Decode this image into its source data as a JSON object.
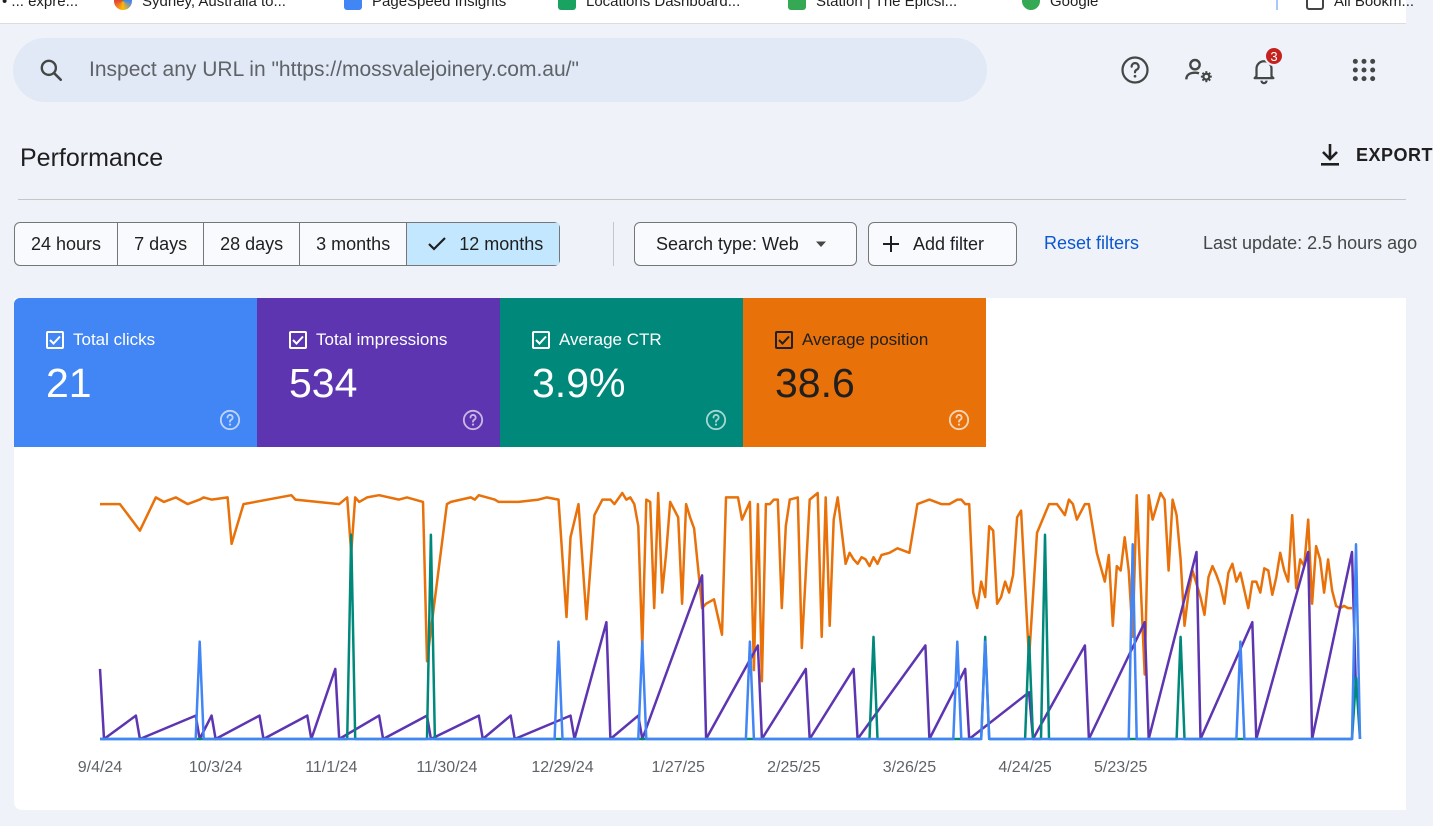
{
  "bookmarks": [
    {
      "label": "• ... expre..."
    },
    {
      "label": "Sydney, Australia to..."
    },
    {
      "label": "PageSpeed Insights"
    },
    {
      "label": "Locations Dashboard..."
    },
    {
      "label": "Station | The Epicsi..."
    },
    {
      "label": "Google"
    },
    {
      "label": "All Bookm..."
    }
  ],
  "search": {
    "placeholder": "Inspect any URL in \"https://mossvalejoinery.com.au/\""
  },
  "header": {
    "notifications_count": "3"
  },
  "page": {
    "title": "Performance",
    "export_label": "EXPORT"
  },
  "date_ranges": [
    "24 hours",
    "7 days",
    "28 days",
    "3 months",
    "12 months"
  ],
  "selected_range": "12 months",
  "filters": {
    "search_type": "Search type: Web",
    "add_filter": "Add filter",
    "reset": "Reset filters",
    "last_update": "Last update: 2.5 hours ago"
  },
  "metrics": [
    {
      "label": "Total clicks",
      "value": "21",
      "color": "#4285f4"
    },
    {
      "label": "Total impressions",
      "value": "534",
      "color": "#5e35b1"
    },
    {
      "label": "Average CTR",
      "value": "3.9%",
      "color": "#00897b"
    },
    {
      "label": "Average position",
      "value": "38.6",
      "color": "#e8710a"
    }
  ],
  "chart_data": {
    "type": "line",
    "title": "",
    "xlabel": "",
    "ylabel": "",
    "x_ticks": [
      "9/4/24",
      "10/3/24",
      "11/1/24",
      "11/30/24",
      "12/29/24",
      "1/27/25",
      "2/25/25",
      "3/26/25",
      "4/24/25",
      "5/23/25"
    ],
    "x_range": [
      "9/4/24",
      "5/26/25"
    ],
    "axes_visible": false,
    "series": [
      {
        "name": "Average position",
        "color": "#e8710a",
        "note": "daily average position, inverted scale (top = better rank); many days with no data",
        "approx_points": [
          [
            0,
            5
          ],
          [
            5,
            5
          ],
          [
            10,
            17
          ],
          [
            14,
            2
          ],
          [
            16,
            4
          ],
          [
            19,
            2
          ],
          [
            20,
            3
          ],
          [
            22,
            5
          ],
          [
            25,
            3
          ],
          [
            26,
            2
          ],
          [
            28,
            3
          ],
          [
            32,
            2
          ],
          [
            33,
            23
          ],
          [
            36,
            5
          ],
          [
            48,
            1
          ],
          [
            49,
            3
          ],
          [
            60,
            5
          ],
          [
            62,
            2
          ],
          [
            63,
            27
          ],
          [
            64,
            2
          ],
          [
            65,
            4
          ],
          [
            67,
            2
          ],
          [
            70,
            1
          ],
          [
            75,
            3
          ],
          [
            77,
            2
          ],
          [
            81,
            4
          ],
          [
            82,
            76
          ],
          [
            87,
            5
          ],
          [
            88,
            4
          ],
          [
            93,
            2
          ],
          [
            94,
            3
          ],
          [
            95,
            1
          ],
          [
            99,
            3
          ],
          [
            100,
            4
          ],
          [
            105,
            4
          ],
          [
            110,
            3
          ],
          [
            112,
            2
          ],
          [
            115,
            3
          ],
          [
            117,
            56
          ],
          [
            118,
            20
          ],
          [
            120,
            5
          ],
          [
            122,
            57
          ],
          [
            124,
            10
          ],
          [
            126,
            3
          ],
          [
            128,
            3
          ],
          [
            129,
            5
          ],
          [
            131,
            0
          ],
          [
            132,
            3
          ],
          [
            133,
            2
          ],
          [
            134,
            5
          ],
          [
            135,
            15
          ],
          [
            136,
            70
          ],
          [
            137,
            3
          ],
          [
            138,
            4
          ],
          [
            139,
            52
          ],
          [
            140,
            0
          ],
          [
            141,
            45
          ],
          [
            142,
            27
          ],
          [
            143,
            4
          ],
          [
            145,
            11
          ],
          [
            146,
            50
          ],
          [
            147,
            5
          ],
          [
            148,
            11
          ],
          [
            149,
            16
          ],
          [
            151,
            52
          ],
          [
            152,
            50
          ],
          [
            154,
            48
          ],
          [
            156,
            64
          ],
          [
            157,
            2
          ],
          [
            158,
            2
          ],
          [
            159,
            2
          ],
          [
            160,
            2
          ],
          [
            161,
            12
          ],
          [
            163,
            4
          ],
          [
            164,
            80
          ],
          [
            165,
            5
          ],
          [
            166,
            85
          ],
          [
            167,
            5
          ],
          [
            168,
            5
          ],
          [
            169,
            3
          ],
          [
            170,
            3
          ],
          [
            171,
            52
          ],
          [
            172,
            15
          ],
          [
            173,
            3
          ],
          [
            175,
            2
          ],
          [
            176,
            70
          ],
          [
            178,
            3
          ],
          [
            180,
            0
          ],
          [
            181,
            65
          ],
          [
            182,
            2
          ],
          [
            183,
            60
          ],
          [
            184,
            12
          ],
          [
            185,
            2
          ],
          [
            187,
            32
          ],
          [
            188,
            27
          ],
          [
            189,
            30
          ],
          [
            190,
            32
          ],
          [
            191,
            29
          ],
          [
            192,
            30
          ],
          [
            193,
            33
          ],
          [
            194,
            29
          ],
          [
            195,
            32
          ],
          [
            196,
            28
          ],
          [
            198,
            27
          ],
          [
            200,
            25
          ],
          [
            203,
            27
          ],
          [
            205,
            5
          ],
          [
            208,
            3
          ],
          [
            211,
            5
          ],
          [
            213,
            5
          ],
          [
            215,
            3
          ],
          [
            216,
            3
          ],
          [
            217,
            5
          ],
          [
            218,
            5
          ],
          [
            219,
            45
          ],
          [
            220,
            52
          ],
          [
            221,
            40
          ],
          [
            222,
            47
          ],
          [
            223,
            15
          ],
          [
            224,
            17
          ],
          [
            225,
            50
          ],
          [
            226,
            47
          ],
          [
            227,
            40
          ],
          [
            228,
            45
          ],
          [
            229,
            37
          ],
          [
            230,
            11
          ],
          [
            231,
            8
          ],
          [
            233,
            75
          ],
          [
            235,
            18
          ],
          [
            238,
            5
          ],
          [
            240,
            5
          ],
          [
            242,
            10
          ],
          [
            243,
            3
          ],
          [
            244,
            5
          ],
          [
            245,
            12
          ],
          [
            247,
            5
          ],
          [
            248,
            5
          ],
          [
            250,
            27
          ],
          [
            252,
            40
          ],
          [
            253,
            28
          ],
          [
            254,
            60
          ],
          [
            255,
            33
          ],
          [
            256,
            35
          ],
          [
            257,
            20
          ],
          [
            258,
            35
          ],
          [
            259,
            65
          ],
          [
            260,
            1
          ],
          [
            262,
            82
          ],
          [
            263,
            1
          ],
          [
            264,
            12
          ],
          [
            266,
            0
          ],
          [
            267,
            3
          ],
          [
            268,
            35
          ],
          [
            269,
            3
          ],
          [
            270,
            10
          ],
          [
            271,
            30
          ],
          [
            272,
            60
          ],
          [
            273,
            45
          ],
          [
            274,
            35
          ],
          [
            276,
            47
          ],
          [
            277,
            55
          ],
          [
            278,
            38
          ],
          [
            279,
            33
          ],
          [
            280,
            37
          ],
          [
            281,
            42
          ],
          [
            282,
            50
          ],
          [
            283,
            36
          ],
          [
            284,
            32
          ],
          [
            285,
            40
          ],
          [
            286,
            36
          ],
          [
            288,
            52
          ],
          [
            289,
            40
          ],
          [
            290,
            40
          ],
          [
            291,
            45
          ],
          [
            292,
            34
          ],
          [
            293,
            35
          ],
          [
            294,
            46
          ],
          [
            295,
            38
          ],
          [
            296,
            27
          ],
          [
            297,
            35
          ],
          [
            298,
            40
          ],
          [
            299,
            10
          ],
          [
            300,
            43
          ],
          [
            301,
            30
          ],
          [
            302,
            33
          ],
          [
            303,
            12
          ],
          [
            304,
            50
          ],
          [
            305,
            24
          ],
          [
            306,
            30
          ],
          [
            307,
            45
          ],
          [
            308,
            30
          ],
          [
            309,
            44
          ],
          [
            310,
            51
          ],
          [
            311,
            52
          ],
          [
            312,
            51
          ],
          [
            313,
            52
          ],
          [
            314,
            52
          ]
        ]
      },
      {
        "name": "Total impressions",
        "color": "#5e35b1",
        "note": "daily impressions",
        "approx_points": [
          [
            0,
            3
          ],
          [
            1,
            0
          ],
          [
            9,
            1
          ],
          [
            10,
            0
          ],
          [
            24,
            1
          ],
          [
            25,
            0
          ],
          [
            28,
            1
          ],
          [
            29,
            0
          ],
          [
            40,
            1
          ],
          [
            41,
            0
          ],
          [
            52,
            1
          ],
          [
            53,
            0
          ],
          [
            59,
            3
          ],
          [
            60,
            0
          ],
          [
            70,
            1
          ],
          [
            71,
            0
          ],
          [
            82,
            1
          ],
          [
            83,
            0
          ],
          [
            95,
            1
          ],
          [
            96,
            0
          ],
          [
            103,
            1
          ],
          [
            104,
            0
          ],
          [
            118,
            1
          ],
          [
            119,
            0
          ],
          [
            127,
            5
          ],
          [
            128,
            0
          ],
          [
            135,
            1
          ],
          [
            136,
            0
          ],
          [
            151,
            7
          ],
          [
            152,
            0
          ],
          [
            165,
            4
          ],
          [
            166,
            0
          ],
          [
            177,
            3
          ],
          [
            178,
            0
          ],
          [
            189,
            3
          ],
          [
            190,
            0
          ],
          [
            207,
            4
          ],
          [
            208,
            0
          ],
          [
            217,
            3
          ],
          [
            218,
            0
          ],
          [
            233,
            2
          ],
          [
            234,
            0
          ],
          [
            247,
            4
          ],
          [
            248,
            0
          ],
          [
            262,
            5
          ],
          [
            263,
            0
          ],
          [
            275,
            8
          ],
          [
            276,
            0
          ],
          [
            289,
            5
          ],
          [
            290,
            0
          ],
          [
            303,
            8
          ],
          [
            304,
            0
          ],
          [
            314,
            8
          ],
          [
            315,
            2
          ]
        ]
      },
      {
        "name": "Average CTR",
        "color": "#00897b",
        "note": "daily CTR, mostly 0 with spikes",
        "approx_points": [
          [
            0,
            0
          ],
          [
            62,
            0
          ],
          [
            63,
            100
          ],
          [
            64,
            0
          ],
          [
            82,
            0
          ],
          [
            83,
            100
          ],
          [
            84,
            0
          ],
          [
            193,
            0
          ],
          [
            194,
            50
          ],
          [
            195,
            0
          ],
          [
            221,
            0
          ],
          [
            222,
            50
          ],
          [
            223,
            0
          ],
          [
            232,
            0
          ],
          [
            233,
            50
          ],
          [
            234,
            0
          ],
          [
            236,
            0
          ],
          [
            237,
            100
          ],
          [
            238,
            0
          ],
          [
            270,
            0
          ],
          [
            271,
            50
          ],
          [
            272,
            0
          ],
          [
            314,
            0
          ],
          [
            315,
            30
          ],
          [
            316,
            0
          ]
        ]
      },
      {
        "name": "Total clicks",
        "color": "#4285f4",
        "note": "daily clicks, mostly 0 with small spikes",
        "approx_points": [
          [
            0,
            0
          ],
          [
            24,
            0
          ],
          [
            25,
            1
          ],
          [
            26,
            0
          ],
          [
            114,
            0
          ],
          [
            115,
            1
          ],
          [
            116,
            0
          ],
          [
            135,
            0
          ],
          [
            136,
            1
          ],
          [
            137,
            0
          ],
          [
            162,
            0
          ],
          [
            163,
            1
          ],
          [
            164,
            0
          ],
          [
            214,
            0
          ],
          [
            215,
            1
          ],
          [
            216,
            0
          ],
          [
            221,
            0
          ],
          [
            222,
            1
          ],
          [
            223,
            0
          ],
          [
            258,
            0
          ],
          [
            259,
            2
          ],
          [
            260,
            0
          ],
          [
            285,
            0
          ],
          [
            286,
            1
          ],
          [
            287,
            0
          ],
          [
            314,
            0
          ],
          [
            315,
            2
          ],
          [
            316,
            0
          ]
        ]
      }
    ]
  }
}
